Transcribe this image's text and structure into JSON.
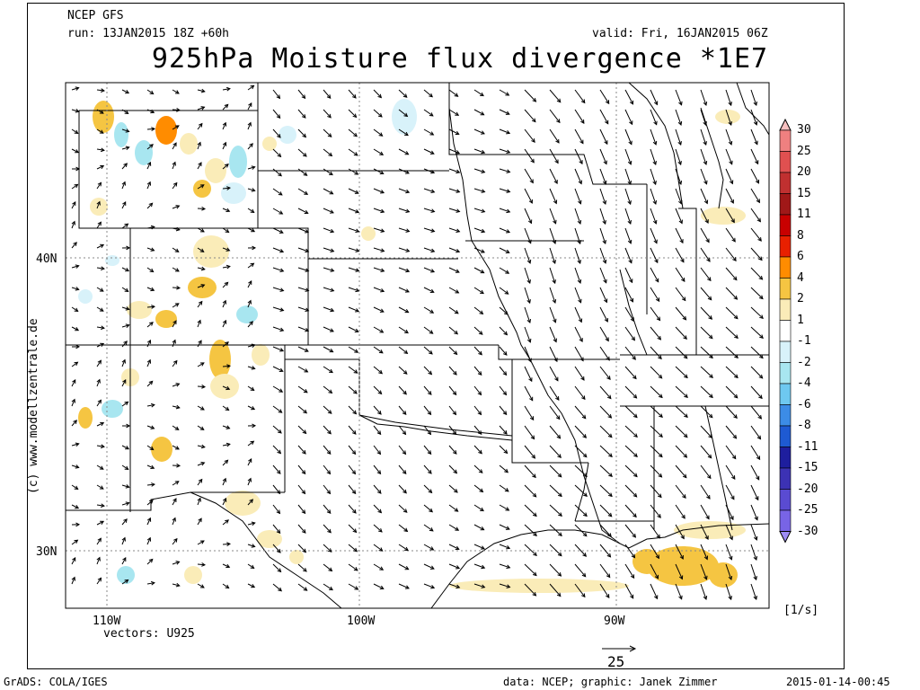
{
  "header": {
    "model": "NCEP GFS",
    "run": "run: 13JAN2015 18Z +60h",
    "valid": "valid: Fri, 16JAN2015 06Z",
    "title": "925hPa Moisture flux divergence *1E7"
  },
  "map": {
    "lat_labels": [
      "40N",
      "30N"
    ],
    "lon_labels": [
      "110W",
      "100W",
      "90W"
    ],
    "vectors_label": "vectors: U925",
    "reference_vector": "25",
    "side_credit": "(c) www.modellzentrale.de"
  },
  "colorbar": {
    "levels": [
      "30",
      "25",
      "20",
      "15",
      "11",
      "8",
      "6",
      "4",
      "2",
      "1",
      "-1",
      "-2",
      "-4",
      "-6",
      "-8",
      "-11",
      "-15",
      "-20",
      "-25",
      "-30"
    ],
    "colors": [
      "#f7c0c0",
      "#ef8080",
      "#e05050",
      "#c03030",
      "#a01818",
      "#c80000",
      "#e82000",
      "#ff8c00",
      "#f5c542",
      "#faecb8",
      "#ffffff",
      "#d8f2fa",
      "#a8e6f0",
      "#6ec8f0",
      "#3c8ce6",
      "#1e5ad2",
      "#1e1e9e",
      "#3c32b4",
      "#5a4bd2",
      "#7864e6",
      "#9e8cf5"
    ],
    "unit": "[1/s]"
  },
  "footer": {
    "left": "GrADS: COLA/IGES",
    "center": "data: NCEP; graphic: Janek Zimmer",
    "right": "2015-01-14-00:45"
  }
}
